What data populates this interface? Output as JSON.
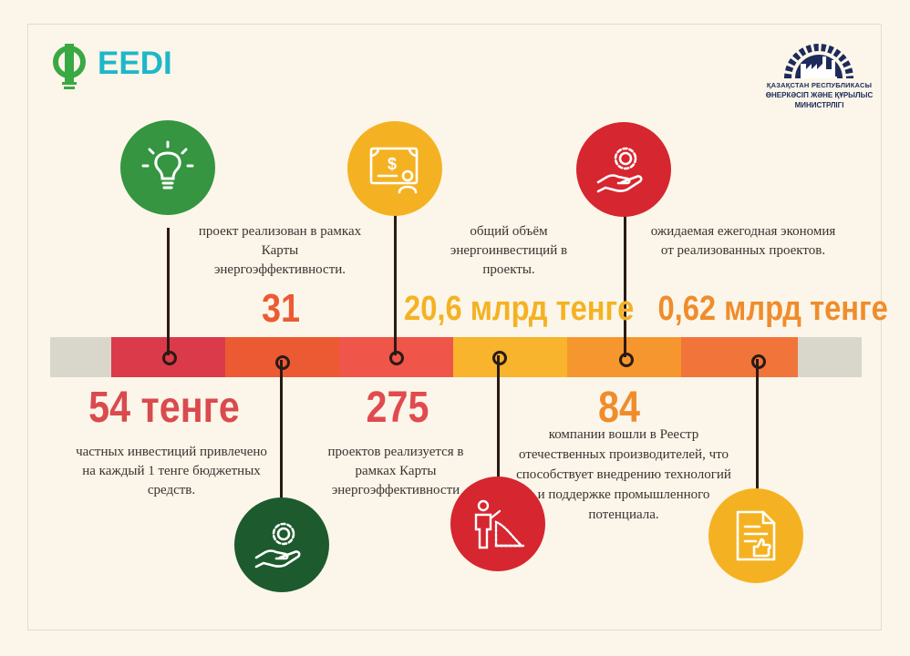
{
  "header": {
    "brand_text": "EEDI",
    "ministry_line1": "ҚАЗАҚСТАН РЕСПУБЛИКАСЫ",
    "ministry_line2": "ӨНЕРКӘСІП ЖӘНЕ ҚҰРЫЛЫС",
    "ministry_line3": "МИНИСТРЛІГІ"
  },
  "colors": {
    "background": "#fbf6e9",
    "green": "#2e8b3e",
    "dark_green": "#1c5a2e",
    "yellow": "#f4b223",
    "red": "#d6262f",
    "coral": "#ef4b47",
    "orange": "#f08c2c",
    "bar_gray": "#d9d6cb",
    "text_dark": "#3a3230"
  },
  "bar_segments": [
    {
      "color": "#d9d6cb"
    },
    {
      "color": "#db3a4a"
    },
    {
      "color": "#ec5a33"
    },
    {
      "color": "#f0554a"
    },
    {
      "color": "#f7b42c"
    },
    {
      "color": "#f6962e"
    },
    {
      "color": "#f1743a"
    },
    {
      "color": "#d9d6cb"
    }
  ],
  "facts": [
    {
      "value": "54 тенге",
      "text": "частных инвестиций привлечено на каждый 1 тенге бюджетных средств.",
      "icon": "lightbulb-icon",
      "color": "#da4a4e"
    },
    {
      "value": "31",
      "text": "проект реализован в рамках Карты энергоэффективности.",
      "icon": "hand-gear-icon",
      "color": "#ec5a33"
    },
    {
      "value": "275",
      "text": "проектов реализуется в рамках Карты энергоэффективности",
      "icon": "money-certificate-icon",
      "color": "#e14a4e"
    },
    {
      "value": "20,6 млрд тенге",
      "text": "общий объём энергоинвестиций в проекты.",
      "icon": "presenter-chart-icon",
      "color": "#f4b223"
    },
    {
      "value": "84",
      "text": "компании вошли в Реестр отечественных производителей, что способствует внедрению технологий и поддержке промышленного потенциала.",
      "icon": "hand-gear-icon",
      "color": "#f08c2c"
    },
    {
      "value": "0,62 млрд тенге",
      "text": "ожидаемая ежегодная экономия от реализованных проектов.",
      "icon": "document-thumbs-up-icon",
      "color": "#f08c2c"
    }
  ]
}
